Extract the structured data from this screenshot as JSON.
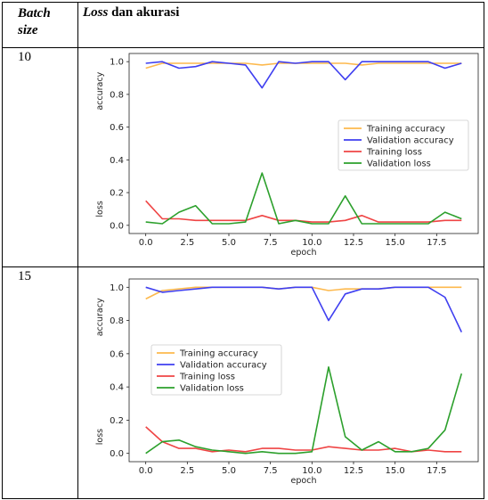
{
  "header": {
    "batch_size_line1": "Batch",
    "batch_size_line2": "size",
    "loss_word": "Loss",
    "loss_rest": " dan akurasi"
  },
  "rows": [
    {
      "batch_size": "10"
    },
    {
      "batch_size": "15"
    }
  ],
  "colors": {
    "training_accuracy": "#fdb94d",
    "validation_accuracy": "#3f3ff0",
    "training_loss": "#ef4444",
    "validation_loss": "#2ca02c"
  },
  "chart_data": [
    {
      "type": "line",
      "xlabel": "epoch",
      "ylabel_top": "accuracy",
      "ylabel_bottom": "loss",
      "xlim": [
        0,
        19
      ],
      "ylim": [
        0,
        1.0
      ],
      "xticks": [
        "0.0",
        "2.5",
        "5.0",
        "7.5",
        "10.0",
        "12.5",
        "15.0",
        "17.5"
      ],
      "yticks": [
        "0.0",
        "0.2",
        "0.4",
        "0.6",
        "0.8",
        "1.0"
      ],
      "legend_position": "right",
      "x": [
        0,
        1,
        2,
        3,
        4,
        5,
        6,
        7,
        8,
        9,
        10,
        11,
        12,
        13,
        14,
        15,
        16,
        17,
        18,
        19
      ],
      "series": [
        {
          "name": "Training accuracy",
          "values": [
            0.96,
            0.99,
            0.99,
            0.99,
            0.99,
            0.99,
            0.99,
            0.98,
            0.99,
            0.99,
            0.99,
            0.99,
            0.99,
            0.98,
            0.99,
            0.99,
            0.99,
            0.99,
            0.99,
            0.99
          ]
        },
        {
          "name": "Validation accuracy",
          "values": [
            0.99,
            1.0,
            0.96,
            0.97,
            1.0,
            0.99,
            0.98,
            0.84,
            1.0,
            0.99,
            1.0,
            1.0,
            0.89,
            1.0,
            1.0,
            1.0,
            1.0,
            1.0,
            0.96,
            0.99
          ]
        },
        {
          "name": "Training loss",
          "values": [
            0.15,
            0.04,
            0.04,
            0.03,
            0.03,
            0.03,
            0.03,
            0.06,
            0.03,
            0.03,
            0.02,
            0.02,
            0.03,
            0.06,
            0.02,
            0.02,
            0.02,
            0.02,
            0.03,
            0.03
          ]
        },
        {
          "name": "Validation loss",
          "values": [
            0.02,
            0.01,
            0.08,
            0.12,
            0.01,
            0.01,
            0.02,
            0.32,
            0.01,
            0.03,
            0.01,
            0.01,
            0.18,
            0.01,
            0.01,
            0.01,
            0.01,
            0.01,
            0.08,
            0.04
          ]
        }
      ]
    },
    {
      "type": "line",
      "xlabel": "epoch",
      "ylabel_top": "accuracy",
      "ylabel_bottom": "loss",
      "xlim": [
        0,
        19
      ],
      "ylim": [
        0,
        1.0
      ],
      "xticks": [
        "0.0",
        "2.5",
        "5.0",
        "7.5",
        "10.0",
        "12.5",
        "15.0",
        "17.5"
      ],
      "yticks": [
        "0.0",
        "0.2",
        "0.4",
        "0.6",
        "0.8",
        "1.0"
      ],
      "legend_position": "left",
      "x": [
        0,
        1,
        2,
        3,
        4,
        5,
        6,
        7,
        8,
        9,
        10,
        11,
        12,
        13,
        14,
        15,
        16,
        17,
        18,
        19
      ],
      "series": [
        {
          "name": "Training accuracy",
          "values": [
            0.93,
            0.98,
            0.99,
            1.0,
            1.0,
            1.0,
            1.0,
            1.0,
            0.99,
            1.0,
            1.0,
            0.98,
            0.99,
            0.99,
            0.99,
            1.0,
            1.0,
            1.0,
            1.0,
            1.0
          ]
        },
        {
          "name": "Validation accuracy",
          "values": [
            1.0,
            0.97,
            0.98,
            0.99,
            1.0,
            1.0,
            1.0,
            1.0,
            0.99,
            1.0,
            1.0,
            0.8,
            0.96,
            0.99,
            0.99,
            1.0,
            1.0,
            1.0,
            0.94,
            0.73
          ]
        },
        {
          "name": "Training loss",
          "values": [
            0.16,
            0.07,
            0.03,
            0.03,
            0.01,
            0.02,
            0.01,
            0.03,
            0.03,
            0.02,
            0.02,
            0.04,
            0.03,
            0.02,
            0.02,
            0.03,
            0.01,
            0.02,
            0.01,
            0.01
          ]
        },
        {
          "name": "Validation loss",
          "values": [
            0.0,
            0.07,
            0.08,
            0.04,
            0.02,
            0.01,
            0.0,
            0.01,
            0.0,
            0.0,
            0.01,
            0.52,
            0.1,
            0.02,
            0.07,
            0.01,
            0.01,
            0.03,
            0.14,
            0.48
          ]
        }
      ]
    }
  ]
}
